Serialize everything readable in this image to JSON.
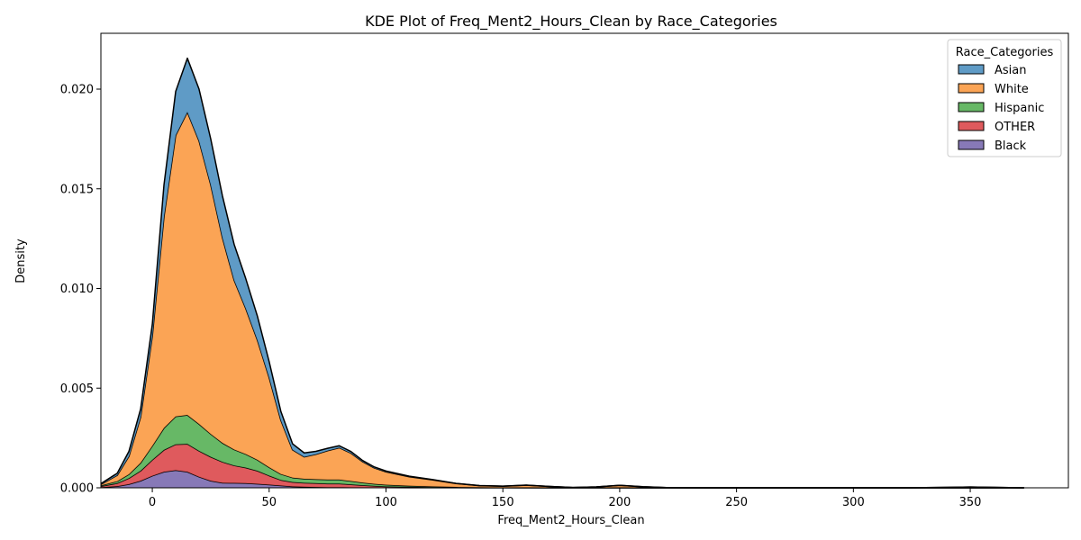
{
  "chart_data": {
    "type": "area",
    "stacked": true,
    "title": "KDE Plot of Freq_Ment2_Hours_Clean by Race_Categories",
    "xlabel": "Freq_Ment2_Hours_Clean",
    "ylabel": "Density",
    "xlim": [
      -22,
      392
    ],
    "ylim": [
      0,
      0.0228
    ],
    "xticks": [
      0,
      50,
      100,
      150,
      200,
      250,
      300,
      350
    ],
    "xtick_labels": [
      "0",
      "50",
      "100",
      "150",
      "200",
      "250",
      "300",
      "350"
    ],
    "yticks": [
      0.0,
      0.005,
      0.01,
      0.015,
      0.02
    ],
    "ytick_labels": [
      "0.000",
      "0.005",
      "0.010",
      "0.015",
      "0.020"
    ],
    "grid": false,
    "legend": {
      "title": "Race_Categories",
      "placement": "top-right"
    },
    "x": [
      -22,
      -15,
      -10,
      -5,
      0,
      5,
      10,
      15,
      20,
      25,
      30,
      35,
      40,
      45,
      50,
      55,
      60,
      65,
      70,
      75,
      80,
      85,
      90,
      95,
      100,
      110,
      120,
      130,
      140,
      150,
      160,
      170,
      180,
      190,
      200,
      210,
      220,
      240,
      260,
      280,
      300,
      320,
      340,
      350,
      360,
      373
    ],
    "series": [
      {
        "name": "Black",
        "color": "#8172b3",
        "values": [
          3e-05,
          8e-05,
          0.00018,
          0.00035,
          0.0006,
          0.0008,
          0.00088,
          0.0008,
          0.00055,
          0.00035,
          0.00025,
          0.00024,
          0.00023,
          0.0002,
          0.00016,
          0.00011,
          7e-05,
          5e-05,
          4e-05,
          3e-05,
          3e-05,
          2e-05,
          2e-05,
          1.5e-05,
          1e-05,
          8e-06,
          5e-06,
          3e-06,
          2e-06,
          2e-06,
          2e-06,
          1e-06,
          1e-06,
          1e-06,
          1e-06,
          1e-06,
          0,
          0,
          0,
          0,
          0,
          0,
          0,
          0,
          0,
          0
        ]
      },
      {
        "name": "OTHER",
        "color": "#dd5154",
        "values": [
          5e-05,
          0.00015,
          0.0003,
          0.0005,
          0.0008,
          0.0011,
          0.0013,
          0.0014,
          0.0013,
          0.0012,
          0.00105,
          0.00088,
          0.00078,
          0.00065,
          0.00045,
          0.00028,
          0.00022,
          0.0002,
          0.00019,
          0.00018,
          0.00018,
          0.00015,
          0.00011,
          8e-05,
          6e-05,
          4.5e-05,
          3e-05,
          2e-05,
          1.2e-05,
          8e-06,
          5e-06,
          3e-06,
          2e-06,
          2e-06,
          2e-06,
          1e-06,
          1e-06,
          0,
          0,
          0,
          0,
          0,
          0,
          0,
          0,
          0
        ]
      },
      {
        "name": "Hispanic",
        "color": "#5fb45e",
        "values": [
          4e-05,
          0.0001,
          0.0002,
          0.0004,
          0.0007,
          0.0011,
          0.0014,
          0.00145,
          0.00135,
          0.00115,
          0.00095,
          0.0008,
          0.00068,
          0.00055,
          0.00042,
          0.0003,
          0.00022,
          0.0002,
          0.0002,
          0.0002,
          0.0002,
          0.00017,
          0.00013,
          0.0001,
          8e-05,
          5e-05,
          3e-05,
          2e-05,
          1.2e-05,
          8e-06,
          5e-06,
          3e-06,
          2e-06,
          2e-06,
          1e-06,
          1e-06,
          1e-06,
          0,
          0,
          0,
          0,
          0,
          0,
          0,
          0,
          0
        ]
      },
      {
        "name": "White",
        "color": "#fb9f4c",
        "values": [
          5e-05,
          0.0003,
          0.0009,
          0.0023,
          0.0055,
          0.0106,
          0.0141,
          0.0152,
          0.0142,
          0.0125,
          0.0103,
          0.0085,
          0.0073,
          0.006,
          0.0045,
          0.0027,
          0.0014,
          0.0011,
          0.00125,
          0.00145,
          0.0016,
          0.0014,
          0.00105,
          0.0008,
          0.00065,
          0.00045,
          0.00033,
          0.00017,
          8e-05,
          6e-05,
          0.00012,
          6e-05,
          1e-05,
          4e-05,
          0.00012,
          5e-05,
          1e-05,
          2e-06,
          2e-06,
          2e-06,
          2e-06,
          2e-06,
          2e-05,
          4e-05,
          2e-05,
          1e-06
        ]
      },
      {
        "name": "Asian",
        "color": "#5696c3",
        "values": [
          4e-05,
          0.0001,
          0.00025,
          0.0004,
          0.0006,
          0.0016,
          0.0022,
          0.0027,
          0.0026,
          0.0023,
          0.0021,
          0.0018,
          0.0015,
          0.0012,
          0.0008,
          0.00045,
          0.0003,
          0.0002,
          0.00015,
          0.00012,
          0.0001,
          8e-05,
          6e-05,
          5e-05,
          4e-05,
          3e-05,
          2e-05,
          1e-05,
          8e-06,
          5e-06,
          3e-06,
          2e-06,
          2e-06,
          1e-06,
          1e-06,
          1e-06,
          1e-06,
          0,
          0,
          0,
          0,
          0,
          0,
          0,
          0,
          0
        ]
      }
    ],
    "legend_order": [
      "Asian",
      "White",
      "Hispanic",
      "OTHER",
      "Black"
    ]
  }
}
